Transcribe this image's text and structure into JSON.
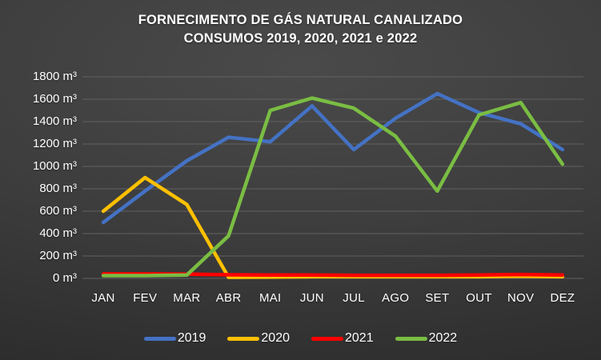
{
  "title": {
    "line1": "FORNECIMENTO DE GÁS NATURAL CANALIZADO",
    "line2": "CONSUMOS 2019, 2020, 2021 e 2022"
  },
  "colors": {
    "background_center": "#4a4a4a",
    "background_edge": "#2b2b2b",
    "gridline": "#616161",
    "text": "#ffffff"
  },
  "chart_data": {
    "type": "line",
    "title": "FORNECIMENTO DE GÁS NATURAL CANALIZADO — CONSUMOS 2019, 2020, 2021 e 2022",
    "grid": "horizontal",
    "legend_position": "bottom",
    "categories": [
      "JAN",
      "FEV",
      "MAR",
      "ABR",
      "MAI",
      "JUN",
      "JUL",
      "AGO",
      "SET",
      "OUT",
      "NOV",
      "DEZ"
    ],
    "y_axis": {
      "min": 0,
      "max": 1800,
      "step": 200,
      "unit": "m³",
      "tick_labels": [
        "0 m³",
        "200 m³",
        "400 m³",
        "600 m³",
        "800 m³",
        "1000 m³",
        "1200 m³",
        "1400 m³",
        "1600 m³",
        "1800 m³"
      ]
    },
    "series": [
      {
        "name": "2019",
        "color": "#4472C4",
        "values": [
          500,
          780,
          1050,
          1260,
          1220,
          1540,
          1150,
          1430,
          1650,
          1480,
          1380,
          1150
        ]
      },
      {
        "name": "2020",
        "color": "#FFC000",
        "values": [
          600,
          900,
          660,
          10,
          12,
          15,
          15,
          15,
          15,
          15,
          20,
          15
        ]
      },
      {
        "name": "2021",
        "color": "#FF0000",
        "values": [
          40,
          40,
          38,
          32,
          30,
          30,
          28,
          28,
          28,
          30,
          35,
          30
        ]
      },
      {
        "name": "2022",
        "color": "#7ABD43",
        "values": [
          25,
          25,
          30,
          380,
          1500,
          1610,
          1520,
          1270,
          780,
          1460,
          1570,
          1020
        ]
      }
    ]
  }
}
